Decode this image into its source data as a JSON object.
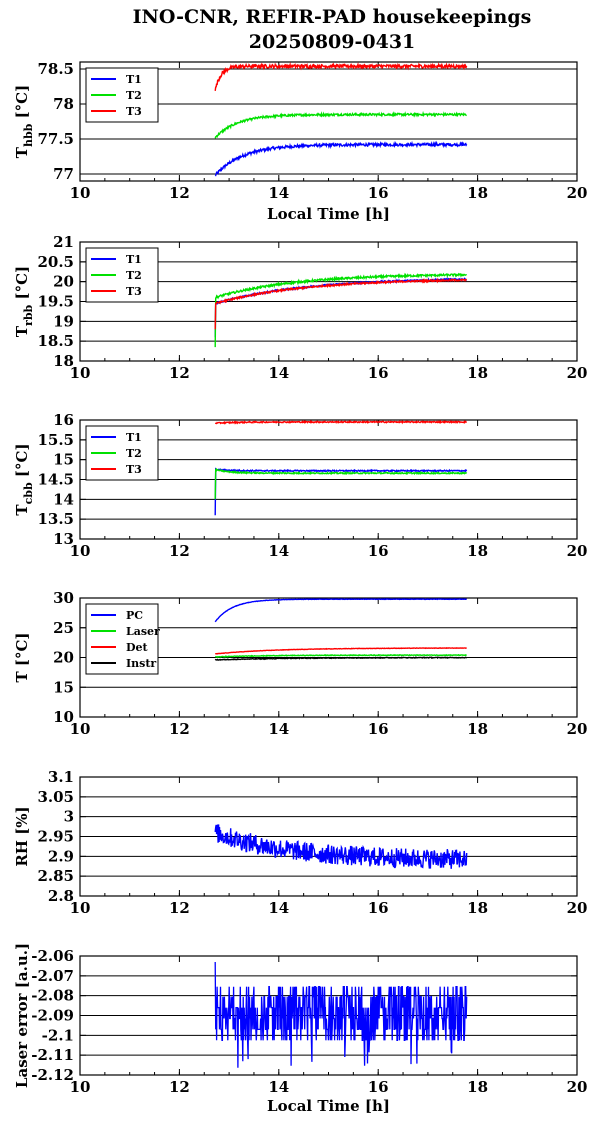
{
  "title_line1": "INO-CNR, REFIR-PAD housekeepings",
  "title_line2": "20250809-0431",
  "colors": {
    "blue": "#0000ff",
    "green": "#00e000",
    "red": "#ff0000",
    "black": "#000000"
  },
  "chart_data": [
    {
      "type": "line",
      "ylabel_main": "T",
      "ylabel_sub": "hbb",
      "ylabel_unit": " [°C]",
      "xlabel": "Local Time [h]",
      "xlim": [
        10,
        20
      ],
      "xticks": [
        "10",
        "12",
        "14",
        "16",
        "18",
        "20"
      ],
      "ylim": [
        76.9,
        78.6
      ],
      "yticks": [
        "77",
        "77.5",
        "78",
        "78.5"
      ],
      "ytick_values": [
        77,
        77.5,
        78,
        78.5
      ],
      "grid": true,
      "legend_position": "top-left",
      "x_range": [
        12.72,
        17.78
      ],
      "series": [
        {
          "name": "T1",
          "color": "blue",
          "y_start": 76.98,
          "y_end": 77.42,
          "tau": 0.55,
          "noise": 0.02
        },
        {
          "name": "T2",
          "color": "green",
          "y_start": 77.52,
          "y_end": 77.85,
          "tau": 0.45,
          "noise": 0.015
        },
        {
          "name": "T3",
          "color": "red",
          "y_start": 78.2,
          "y_end": 78.54,
          "tau": 0.12,
          "noise": 0.025
        }
      ]
    },
    {
      "type": "line",
      "ylabel_main": "T",
      "ylabel_sub": "rbb",
      "ylabel_unit": " [°C]",
      "xlabel": "",
      "xlim": [
        10,
        20
      ],
      "xticks": [
        "10",
        "12",
        "14",
        "16",
        "18",
        "20"
      ],
      "ylim": [
        18,
        21
      ],
      "yticks": [
        "18",
        "18.5",
        "19",
        "19.5",
        "20",
        "20.5",
        "21"
      ],
      "ytick_values": [
        18,
        18.5,
        19,
        19.5,
        20,
        20.5,
        21
      ],
      "grid": true,
      "legend_position": "top-left",
      "x_range": [
        12.72,
        17.78
      ],
      "series": [
        {
          "name": "T1",
          "color": "blue",
          "y_start": 19.45,
          "y_end": 20.1,
          "tau": 1.8,
          "noise": 0.02,
          "spike": 18.6
        },
        {
          "name": "T2",
          "color": "green",
          "y_start": 19.6,
          "y_end": 20.2,
          "tau": 1.6,
          "noise": 0.025,
          "spike": 18.35
        },
        {
          "name": "T3",
          "color": "red",
          "y_start": 19.45,
          "y_end": 20.08,
          "tau": 1.8,
          "noise": 0.02,
          "spike": 18.8
        }
      ]
    },
    {
      "type": "line",
      "ylabel_main": "T",
      "ylabel_sub": "cbb",
      "ylabel_unit": " [°C]",
      "xlabel": "",
      "xlim": [
        10,
        20
      ],
      "xticks": [
        "10",
        "12",
        "14",
        "16",
        "18",
        "20"
      ],
      "ylim": [
        13,
        16
      ],
      "yticks": [
        "13",
        "13.5",
        "14",
        "14.5",
        "15",
        "15.5",
        "16"
      ],
      "ytick_values": [
        13,
        13.5,
        14,
        14.5,
        15,
        15.5,
        16
      ],
      "grid": true,
      "legend_position": "top-left",
      "x_range": [
        12.72,
        17.78
      ],
      "series": [
        {
          "name": "T1",
          "color": "blue",
          "y_start": 14.75,
          "y_end": 14.72,
          "tau": 0.3,
          "noise": 0.015,
          "spike": 13.6
        },
        {
          "name": "T2",
          "color": "green",
          "y_start": 14.75,
          "y_end": 14.66,
          "tau": 0.3,
          "noise": 0.015,
          "spike": 14.0
        },
        {
          "name": "T3",
          "color": "red",
          "y_start": 15.92,
          "y_end": 15.95,
          "tau": 0.4,
          "noise": 0.015
        }
      ]
    },
    {
      "type": "line",
      "ylabel_main": "T",
      "ylabel_sub": "",
      "ylabel_unit": " [°C]",
      "xlabel": "",
      "xlim": [
        10,
        20
      ],
      "xticks": [
        "10",
        "12",
        "14",
        "16",
        "18",
        "20"
      ],
      "ylim": [
        10,
        30
      ],
      "yticks": [
        "10",
        "15",
        "20",
        "25",
        "30"
      ],
      "ytick_values": [
        10,
        15,
        20,
        25,
        30
      ],
      "grid": true,
      "legend_position": "top-left",
      "x_range": [
        12.72,
        17.78
      ],
      "series": [
        {
          "name": "PC",
          "color": "blue",
          "y_start": 26.0,
          "y_end": 29.8,
          "tau": 0.35,
          "noise": 0.03
        },
        {
          "name": "Laser",
          "color": "green",
          "y_start": 20.1,
          "y_end": 20.4,
          "tau": 1.0,
          "noise": 0.05
        },
        {
          "name": "Det",
          "color": "red",
          "y_start": 20.6,
          "y_end": 21.6,
          "tau": 1.2,
          "noise": 0.03
        },
        {
          "name": "Instr",
          "color": "black",
          "y_start": 19.6,
          "y_end": 20.0,
          "tau": 1.5,
          "noise": 0.06
        }
      ]
    },
    {
      "type": "line",
      "ylabel_main": "RH [%]",
      "ylabel_sub": "",
      "ylabel_unit": "",
      "xlabel": "",
      "xlim": [
        10,
        20
      ],
      "xticks": [
        "10",
        "12",
        "14",
        "16",
        "18",
        "20"
      ],
      "ylim": [
        2.8,
        3.1
      ],
      "yticks": [
        "2.8",
        "2.85",
        "2.9",
        "2.95",
        "3",
        "3.05",
        "3.1"
      ],
      "ytick_values": [
        2.8,
        2.85,
        2.9,
        2.95,
        3,
        3.05,
        3.1
      ],
      "grid": true,
      "legend_position": "none",
      "x_range": [
        12.72,
        17.78
      ],
      "series": [
        {
          "name": "",
          "color": "blue",
          "y_start": 2.96,
          "y_end": 2.89,
          "tau": 1.5,
          "noise": 0.025
        }
      ]
    },
    {
      "type": "line",
      "ylabel_main": "Laser error [a.u.]",
      "ylabel_sub": "",
      "ylabel_unit": "",
      "xlabel": "Local Time [h]",
      "xlim": [
        10,
        20
      ],
      "xticks": [
        "10",
        "12",
        "14",
        "16",
        "18",
        "20"
      ],
      "ylim": [
        -2.12,
        -2.06
      ],
      "yticks": [
        "-2.12",
        "-2.11",
        "-2.1",
        "-2.09",
        "-2.08",
        "-2.07",
        "-2.06"
      ],
      "ytick_values": [
        -2.12,
        -2.11,
        -2.1,
        -2.09,
        -2.08,
        -2.07,
        -2.06
      ],
      "grid": true,
      "legend_position": "none",
      "x_range": [
        12.72,
        17.78
      ],
      "series": [
        {
          "name": "",
          "color": "blue",
          "y_start": -2.089,
          "y_end": -2.089,
          "tau": 1.0,
          "noise": 0.009,
          "quantize": 0.0055
        }
      ]
    }
  ]
}
